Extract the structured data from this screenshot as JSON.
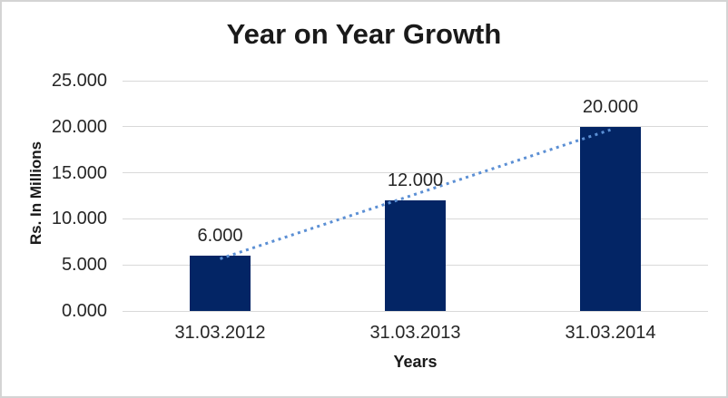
{
  "chart_data": {
    "type": "bar",
    "title": "Year on Year Growth",
    "categories": [
      "31.03.2012",
      "31.03.2013",
      "31.03.2014"
    ],
    "values": [
      6,
      12,
      20
    ],
    "data_labels": [
      "6.000",
      "12.000",
      "20.000"
    ],
    "xlabel": "Years",
    "ylabel": "Rs. In Millions",
    "ylim": [
      0,
      25
    ],
    "y_ticks": [
      {
        "label": "25.000",
        "value": 25
      },
      {
        "label": "20.000",
        "value": 20
      },
      {
        "label": "15.000",
        "value": 15
      },
      {
        "label": "10.000",
        "value": 10
      },
      {
        "label": "5.000",
        "value": 5
      },
      {
        "label": "0.000",
        "value": 0
      }
    ],
    "grid": true,
    "legend": "none",
    "bar_color": "#032565",
    "gridline_color": "#d9d9d9",
    "axis_line_color": "#d9d9d9",
    "frame_border_color": "#d4d4d4",
    "text_color": "#262626",
    "trendline": {
      "type": "linear",
      "style": "dotted",
      "color": "#5b8fd4",
      "start_value": 5.67,
      "end_value": 19.67,
      "start_category_index": 0,
      "end_category_index": 2
    }
  }
}
